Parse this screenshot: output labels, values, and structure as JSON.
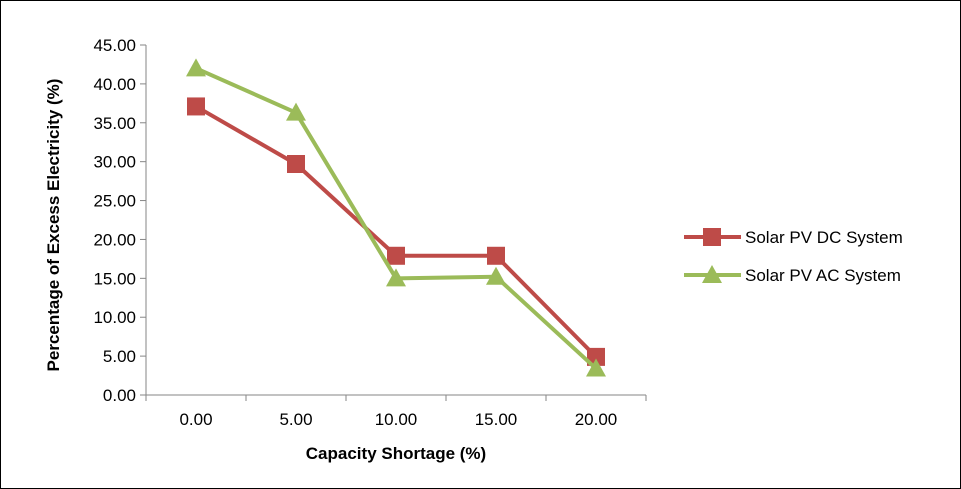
{
  "chart_data": {
    "type": "line",
    "title": "",
    "xlabel": "Capacity Shortage (%)",
    "ylabel": "Percentage of Excess Electricity (%)",
    "categories": [
      "0.00",
      "5.00",
      "10.00",
      "15.00",
      "20.00"
    ],
    "ylim": [
      0,
      45
    ],
    "y_ticks": [
      "0.00",
      "5.00",
      "10.00",
      "15.00",
      "20.00",
      "25.00",
      "30.00",
      "35.00",
      "40.00",
      "45.00"
    ],
    "grid": false,
    "legend_position": "right",
    "series": [
      {
        "name": "Solar PV DC System",
        "values": [
          37.1,
          29.7,
          17.9,
          17.9,
          4.9
        ],
        "color": "#be4b48",
        "marker": "square"
      },
      {
        "name": "Solar PV AC System",
        "values": [
          42.0,
          36.3,
          15.0,
          15.2,
          3.4
        ],
        "color": "#9bbb59",
        "marker": "triangle"
      }
    ]
  }
}
